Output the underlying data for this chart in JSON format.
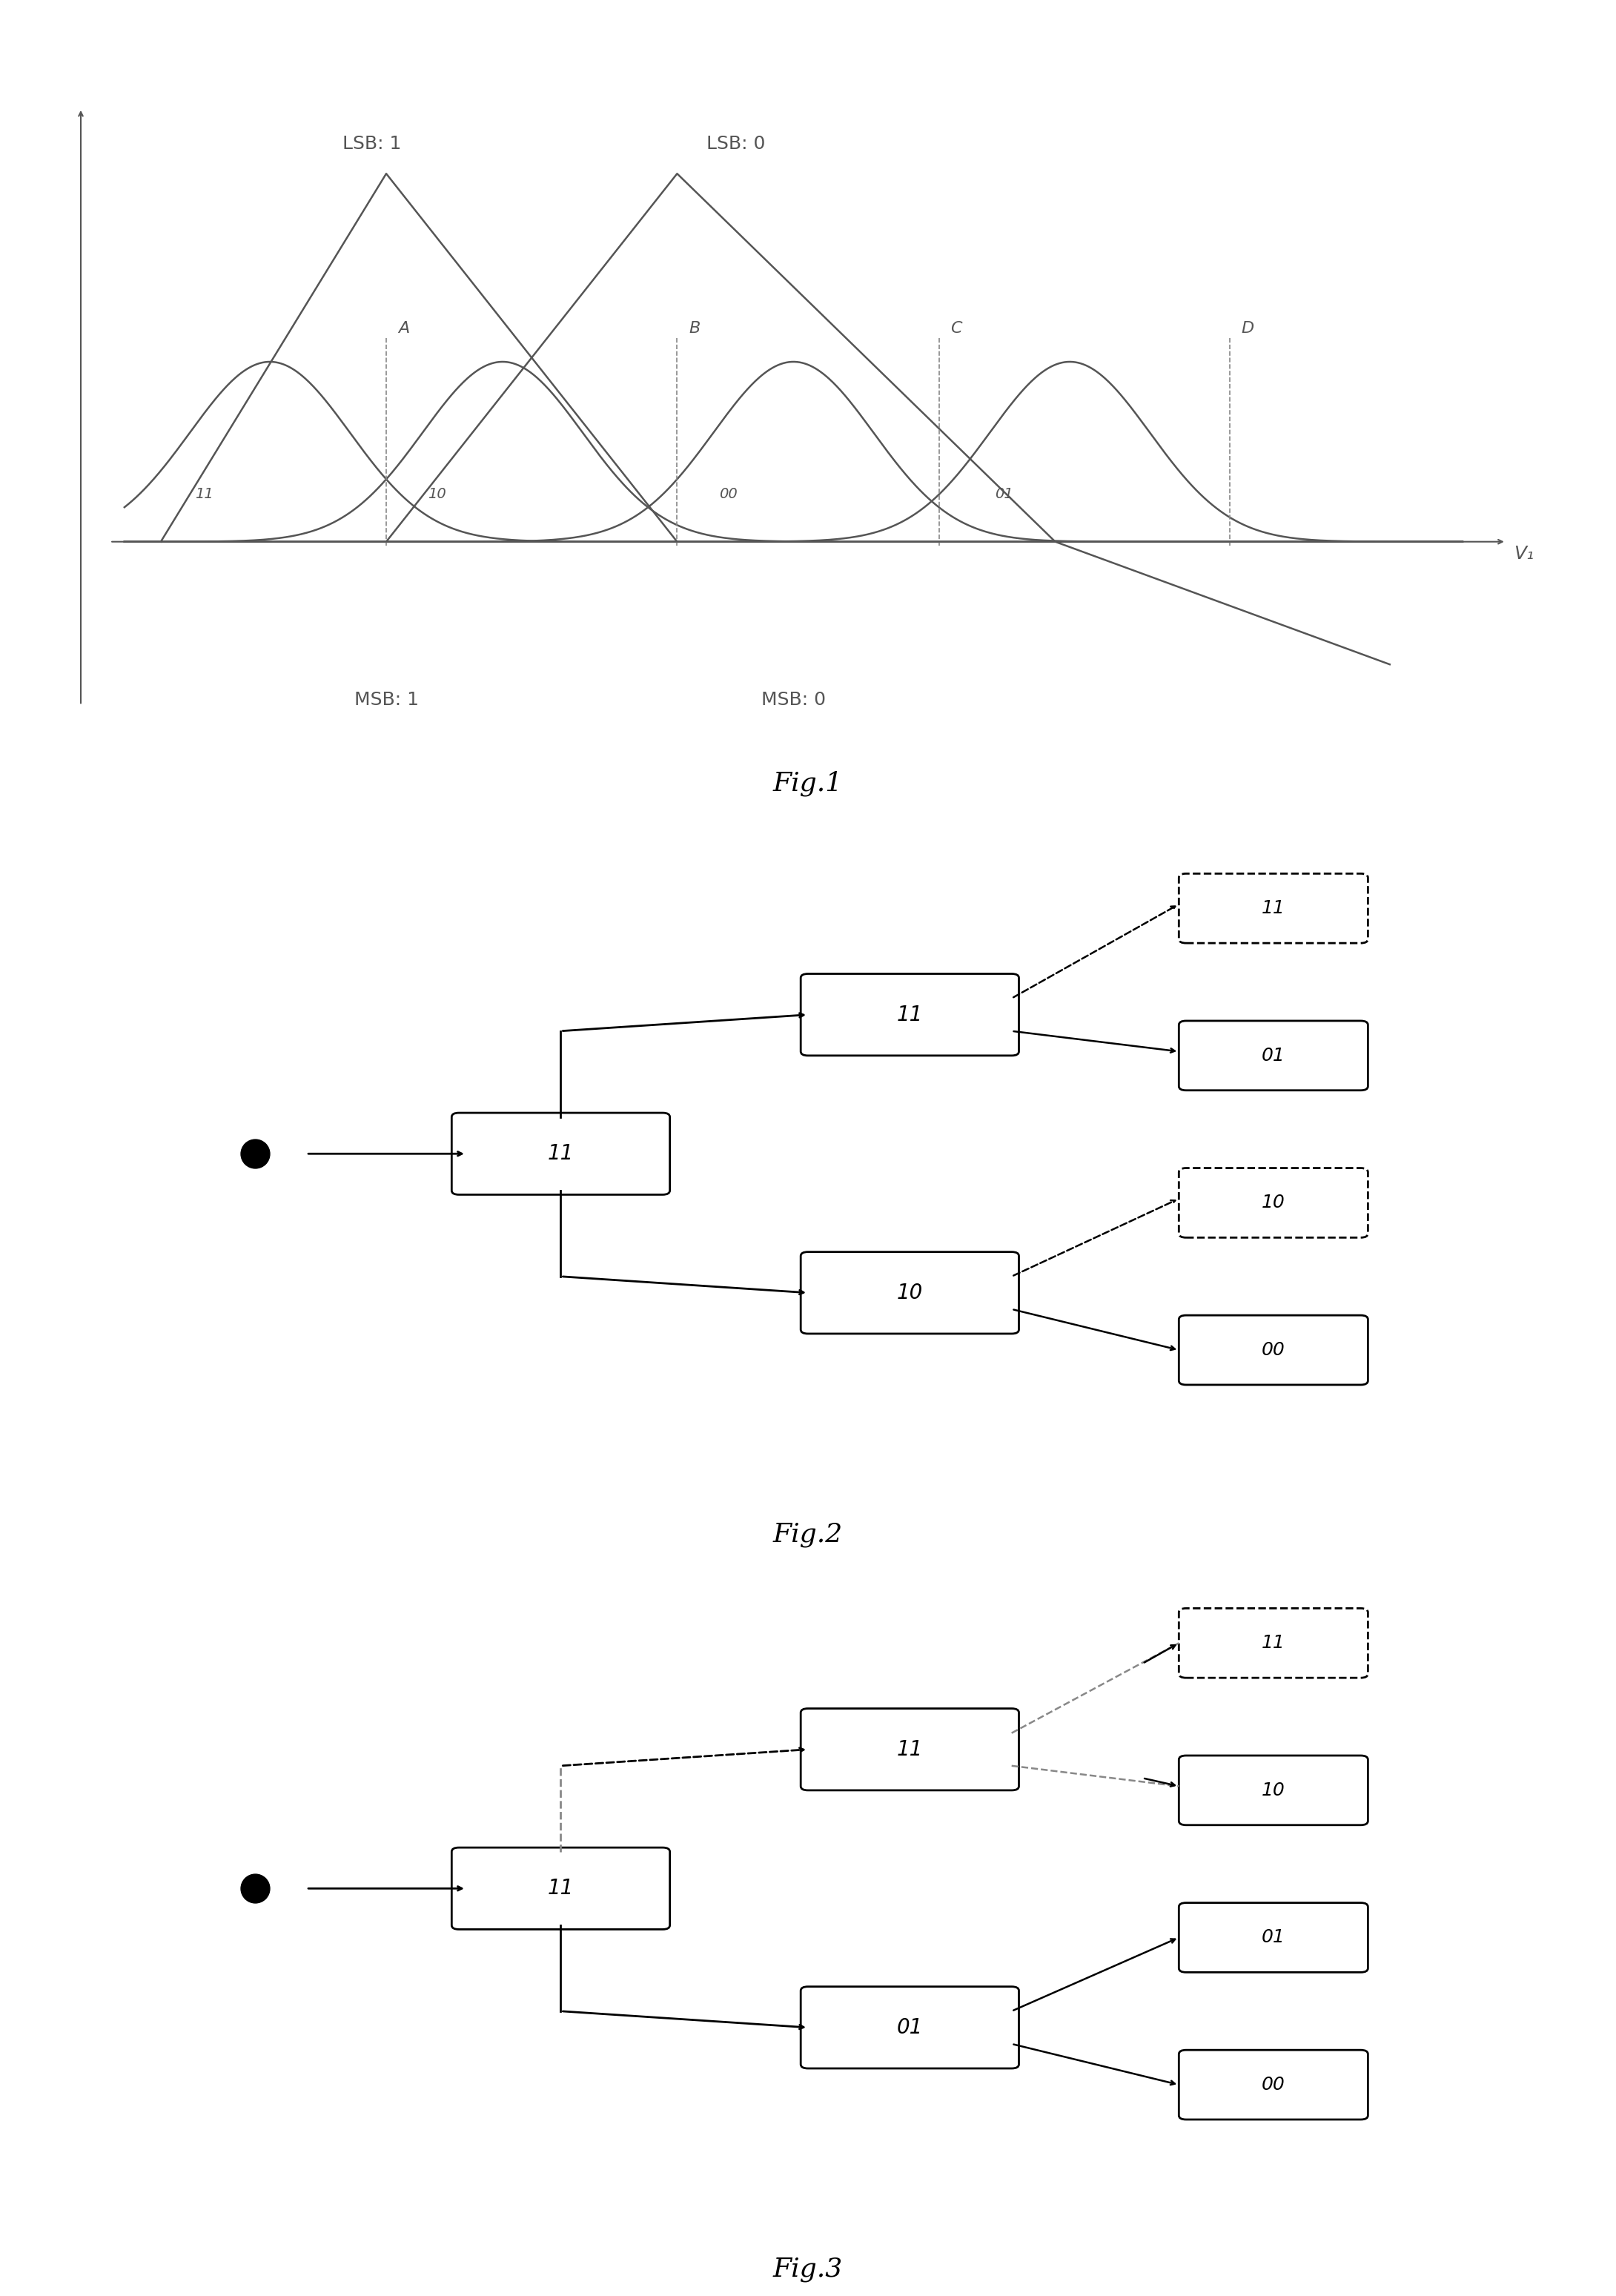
{
  "fig1_title": "Fig.1",
  "fig2_title": "Fig.2",
  "fig3_title": "Fig.3",
  "lsb1_label": "LSB: 1",
  "lsb0_label": "LSB: 0",
  "msb1_label": "MSB: 1",
  "msb0_label": "MSB: 0",
  "v1_label": "V₁",
  "bell_labels": [
    "11",
    "10",
    "00",
    "01"
  ],
  "abcd_labels": [
    "A",
    "B",
    "C",
    "D"
  ],
  "line_color": "#555555",
  "dashed_color": "#888888",
  "bg_color": "#ffffff",
  "fig2_nodes": {
    "start_label": "11",
    "mid_top_label": "11",
    "mid_bot_label": "10",
    "right_labels": [
      "11",
      "01",
      "10",
      "00"
    ]
  },
  "fig3_nodes": {
    "start_label": "11",
    "mid_top_label": "11",
    "mid_bot_label": "01",
    "right_labels": [
      "11",
      "10",
      "01",
      "00"
    ]
  }
}
